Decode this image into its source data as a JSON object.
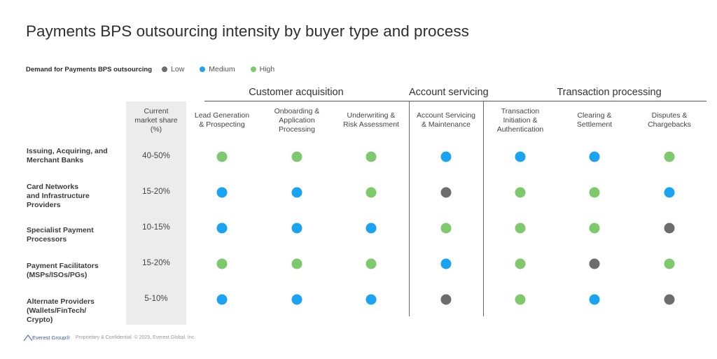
{
  "title": "Payments BPS outsourcing intensity by buyer type and process",
  "legend": {
    "title": "Demand for Payments BPS outsourcing",
    "items": [
      {
        "label": "Low",
        "color": "#6d6d6d"
      },
      {
        "label": "Medium",
        "color": "#1aa3f0"
      },
      {
        "label": "High",
        "color": "#7dc96b"
      }
    ]
  },
  "share_header": "Current\nmarket share\n(%)",
  "groups": [
    {
      "label": "Customer acquisition"
    },
    {
      "label": "Account servicing"
    },
    {
      "label": "Transaction processing"
    }
  ],
  "chart_data": {
    "type": "table",
    "title": "Payments BPS outsourcing intensity by buyer type and process",
    "levels": {
      "L": "Low",
      "M": "Medium",
      "H": "High"
    },
    "columns": [
      {
        "label": "Lead Generation\n& Prospecting",
        "group": "Customer acquisition"
      },
      {
        "label": "Onboarding &\nApplication\nProcessing",
        "group": "Customer acquisition"
      },
      {
        "label": "Underwriting &\nRisk Assessment",
        "group": "Customer acquisition"
      },
      {
        "label": "Account Servicing\n& Maintenance",
        "group": "Account servicing"
      },
      {
        "label": "Transaction\nInitiation &\nAuthentication",
        "group": "Transaction processing"
      },
      {
        "label": "Clearing &\nSettlement",
        "group": "Transaction processing"
      },
      {
        "label": "Disputes &\nChargebacks",
        "group": "Transaction processing"
      }
    ],
    "rows": [
      {
        "label": "Issuing, Acquiring, and\nMerchant Banks",
        "share": "40-50%",
        "values": [
          "H",
          "H",
          "H",
          "M",
          "M",
          "M",
          "H"
        ]
      },
      {
        "label": "Card Networks\nand Infrastructure\nProviders",
        "share": "15-20%",
        "values": [
          "M",
          "M",
          "H",
          "L",
          "H",
          "H",
          "M"
        ]
      },
      {
        "label": "Specialist Payment\nProcessors",
        "share": "10-15%",
        "values": [
          "M",
          "M",
          "M",
          "H",
          "H",
          "H",
          "L"
        ]
      },
      {
        "label": "Payment Facilitators\n(MSPs/ISOs/PGs)",
        "share": "15-20%",
        "values": [
          "H",
          "H",
          "H",
          "M",
          "H",
          "L",
          "H"
        ]
      },
      {
        "label": "Alternate Providers\n(Wallets/FinTech/\nCrypto)",
        "share": "5-10%",
        "values": [
          "M",
          "M",
          "M",
          "L",
          "H",
          "M",
          "L"
        ]
      }
    ]
  },
  "footer": {
    "logo_text": "Everest Group®",
    "text": "Proprietary & Confidential. © 2025, Everest Global, Inc."
  }
}
